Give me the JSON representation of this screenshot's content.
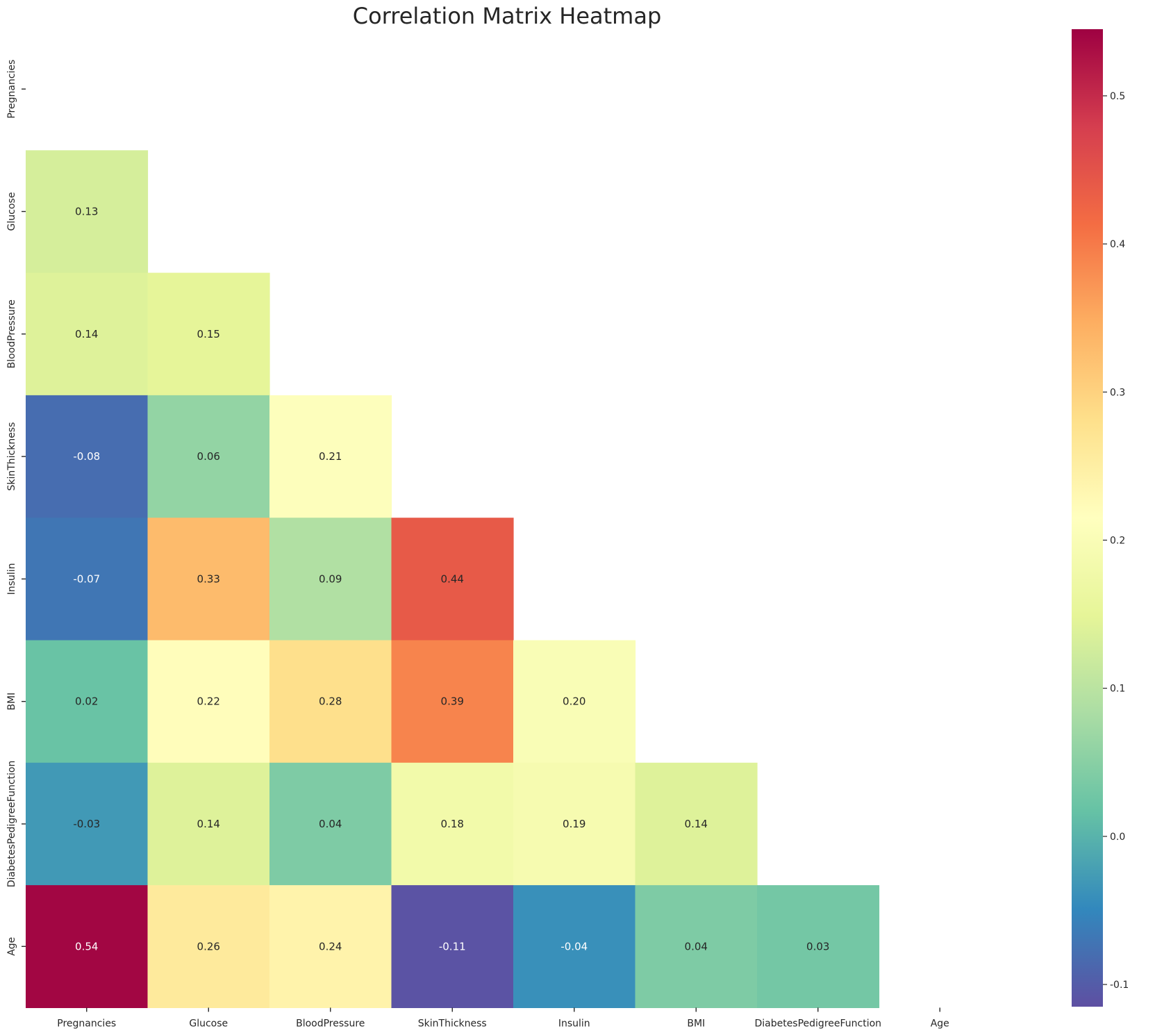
{
  "chart_data": {
    "type": "heatmap",
    "title": "Correlation Matrix Heatmap",
    "variables": [
      "Pregnancies",
      "Glucose",
      "BloodPressure",
      "SkinThickness",
      "Insulin",
      "BMI",
      "DiabetesPedigreeFunction",
      "Age"
    ],
    "mask": "upper-triangle-including-diagonal",
    "cells": [
      {
        "row": "Glucose",
        "col": "Pregnancies",
        "value": 0.13,
        "label": "0.13"
      },
      {
        "row": "BloodPressure",
        "col": "Pregnancies",
        "value": 0.14,
        "label": "0.14"
      },
      {
        "row": "BloodPressure",
        "col": "Glucose",
        "value": 0.15,
        "label": "0.15"
      },
      {
        "row": "SkinThickness",
        "col": "Pregnancies",
        "value": -0.08,
        "label": "-0.08"
      },
      {
        "row": "SkinThickness",
        "col": "Glucose",
        "value": 0.06,
        "label": "0.06"
      },
      {
        "row": "SkinThickness",
        "col": "BloodPressure",
        "value": 0.21,
        "label": "0.21"
      },
      {
        "row": "Insulin",
        "col": "Pregnancies",
        "value": -0.07,
        "label": "-0.07"
      },
      {
        "row": "Insulin",
        "col": "Glucose",
        "value": 0.33,
        "label": "0.33"
      },
      {
        "row": "Insulin",
        "col": "BloodPressure",
        "value": 0.09,
        "label": "0.09"
      },
      {
        "row": "Insulin",
        "col": "SkinThickness",
        "value": 0.44,
        "label": "0.44"
      },
      {
        "row": "BMI",
        "col": "Pregnancies",
        "value": 0.02,
        "label": "0.02"
      },
      {
        "row": "BMI",
        "col": "Glucose",
        "value": 0.22,
        "label": "0.22"
      },
      {
        "row": "BMI",
        "col": "BloodPressure",
        "value": 0.28,
        "label": "0.28"
      },
      {
        "row": "BMI",
        "col": "SkinThickness",
        "value": 0.39,
        "label": "0.39"
      },
      {
        "row": "BMI",
        "col": "Insulin",
        "value": 0.2,
        "label": "0.20"
      },
      {
        "row": "DiabetesPedigreeFunction",
        "col": "Pregnancies",
        "value": -0.03,
        "label": "-0.03"
      },
      {
        "row": "DiabetesPedigreeFunction",
        "col": "Glucose",
        "value": 0.14,
        "label": "0.14"
      },
      {
        "row": "DiabetesPedigreeFunction",
        "col": "BloodPressure",
        "value": 0.04,
        "label": "0.04"
      },
      {
        "row": "DiabetesPedigreeFunction",
        "col": "SkinThickness",
        "value": 0.18,
        "label": "0.18"
      },
      {
        "row": "DiabetesPedigreeFunction",
        "col": "Insulin",
        "value": 0.19,
        "label": "0.19"
      },
      {
        "row": "DiabetesPedigreeFunction",
        "col": "BMI",
        "value": 0.14,
        "label": "0.14"
      },
      {
        "row": "Age",
        "col": "Pregnancies",
        "value": 0.54,
        "label": "0.54"
      },
      {
        "row": "Age",
        "col": "Glucose",
        "value": 0.26,
        "label": "0.26"
      },
      {
        "row": "Age",
        "col": "BloodPressure",
        "value": 0.24,
        "label": "0.24"
      },
      {
        "row": "Age",
        "col": "SkinThickness",
        "value": -0.11,
        "label": "-0.11"
      },
      {
        "row": "Age",
        "col": "Insulin",
        "value": -0.04,
        "label": "-0.04"
      },
      {
        "row": "Age",
        "col": "BMI",
        "value": 0.04,
        "label": "0.04"
      },
      {
        "row": "Age",
        "col": "DiabetesPedigreeFunction",
        "value": 0.03,
        "label": "0.03"
      }
    ],
    "colormap": "Spectral_r",
    "colormap_stops": [
      "#5e4fa2",
      "#3288bd",
      "#66c2a5",
      "#abdda4",
      "#e6f598",
      "#ffffbf",
      "#fee08b",
      "#fdae61",
      "#f46d43",
      "#d53e4f",
      "#9e0142"
    ],
    "colorbar": {
      "vmin": -0.115,
      "vmax": 0.545,
      "ticks": [
        -0.1,
        0.0,
        0.1,
        0.2,
        0.3,
        0.4,
        0.5
      ],
      "tick_labels": [
        "-0.1",
        "0.0",
        "0.1",
        "0.2",
        "0.3",
        "0.4",
        "0.5"
      ]
    },
    "grid": false,
    "legend": "colorbar-right"
  }
}
